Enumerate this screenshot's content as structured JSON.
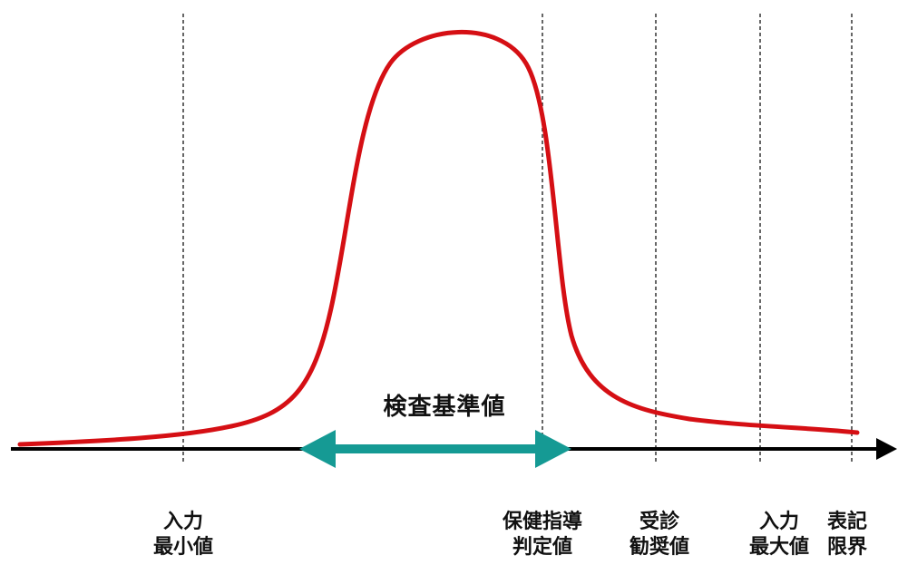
{
  "diagram": {
    "range_label": "検査基準値",
    "markers": [
      {
        "id": "input-min",
        "line1": "入力",
        "line2": "最小値"
      },
      {
        "id": "health-guidance",
        "line1": "保健指導",
        "line2": "判定値"
      },
      {
        "id": "consultation",
        "line1": "受診",
        "line2": "勧奨値"
      },
      {
        "id": "input-max",
        "line1": "入力",
        "line2": "最大値"
      },
      {
        "id": "display-limit",
        "line1": "表記",
        "line2": "限界"
      }
    ],
    "colors": {
      "curve": "#d50f14",
      "range_arrow": "#159a94",
      "axis": "#000000",
      "marker_line": "#333333"
    }
  }
}
